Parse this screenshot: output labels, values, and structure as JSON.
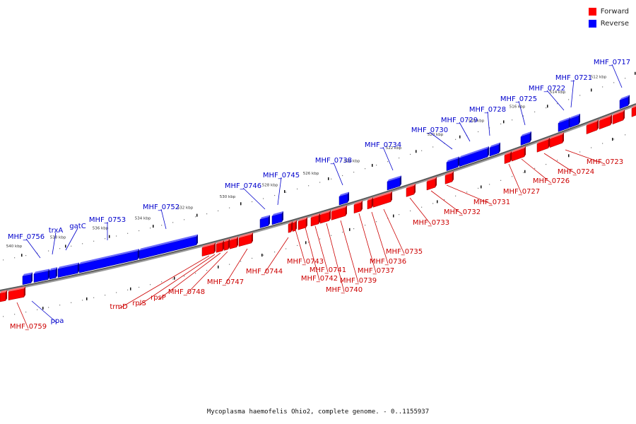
{
  "legend": {
    "forward_label": "Forward",
    "reverse_label": "Reverse",
    "forward_color": "#ff0000",
    "reverse_color": "#0000ff"
  },
  "caption": "Mycoplasma haemofelis Ohio2, complete genome. - 0..1155937",
  "ticks": [
    "540 kbp",
    "538 kbp",
    "536 kbp",
    "534 kbp",
    "532 kbp",
    "530 kbp",
    "528 kbp",
    "526 kbp",
    "524 kbp",
    "522 kbp",
    "520 kbp",
    "518 kbp",
    "516 kbp",
    "514 kbp",
    "512 kbp"
  ],
  "reverse_genes": [
    "MHF_0717",
    "MHF_0721",
    "MHF_0722",
    "MHF_0725",
    "MHF_0728",
    "MHF_0729",
    "MHF_0730",
    "MHF_0734",
    "MHF_0738",
    "MHF_0745",
    "MHF_0746",
    "MHF_0752",
    "MHF_0753",
    "gatC",
    "trxA",
    "MHF_0756",
    "ppa"
  ],
  "forward_genes": [
    "MHF_0723",
    "MHF_0724",
    "MHF_0726",
    "MHF_0727",
    "MHF_0731",
    "MHF_0732",
    "MHF_0733",
    "MHF_0735",
    "MHF_0736",
    "MHF_0737",
    "MHF_0739",
    "MHF_0740",
    "MHF_0741",
    "MHF_0742",
    "MHF_0743",
    "MHF_0744",
    "MHF_0747",
    "MHF_0748",
    "rpsP",
    "rplS",
    "trmD",
    "MHF_0759"
  ]
}
